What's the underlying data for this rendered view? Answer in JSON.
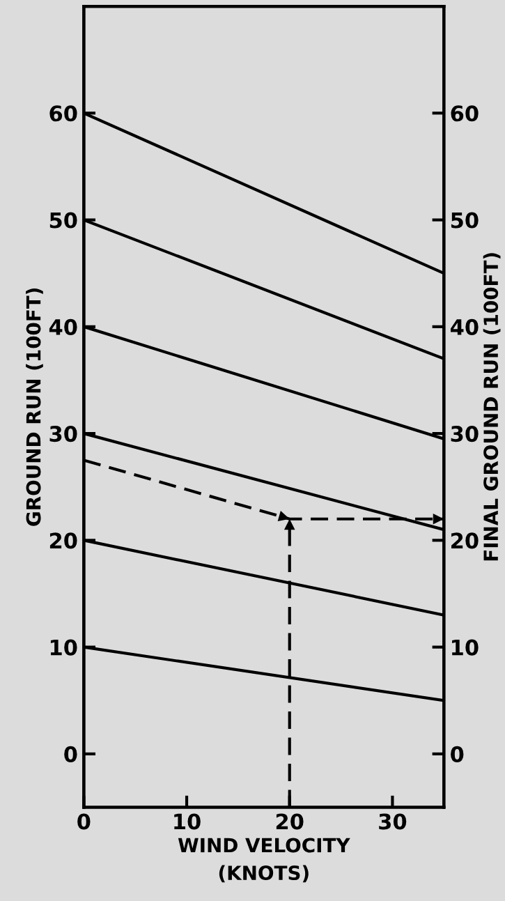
{
  "chart_data": {
    "type": "line",
    "xlabel": "WIND VELOCITY\n(KNOTS)",
    "ylabel": "GROUND RUN (100FT)",
    "y2label": "FINAL GROUND RUN (100FT)",
    "xlim": [
      0,
      35
    ],
    "xticks": [
      0,
      10,
      20,
      30
    ],
    "ylim": [
      -5,
      70
    ],
    "yticks": [
      0,
      10,
      20,
      30,
      40,
      50,
      60
    ],
    "y2lim": [
      -5,
      70
    ],
    "y2ticks": [
      0,
      10,
      20,
      30,
      40,
      50,
      60
    ],
    "grid": false,
    "legend": false,
    "marker": "none",
    "series": [
      {
        "color": "#000000",
        "x": [
          0,
          35
        ],
        "values": [
          60,
          45
        ]
      },
      {
        "color": "#000000",
        "x": [
          0,
          35
        ],
        "values": [
          50,
          37
        ]
      },
      {
        "color": "#000000",
        "x": [
          0,
          35
        ],
        "values": [
          40,
          29.5
        ]
      },
      {
        "color": "#000000",
        "x": [
          0,
          35
        ],
        "values": [
          30,
          21
        ]
      },
      {
        "color": "#000000",
        "x": [
          0,
          35
        ],
        "values": [
          20,
          13
        ]
      },
      {
        "color": "#000000",
        "x": [
          0,
          35
        ],
        "values": [
          10,
          5
        ]
      },
      {
        "color": "#000000",
        "x": [
          0,
          20,
          35
        ],
        "values": [
          27.5,
          22,
          22
        ],
        "line_style": "dashed"
      }
    ]
  }
}
